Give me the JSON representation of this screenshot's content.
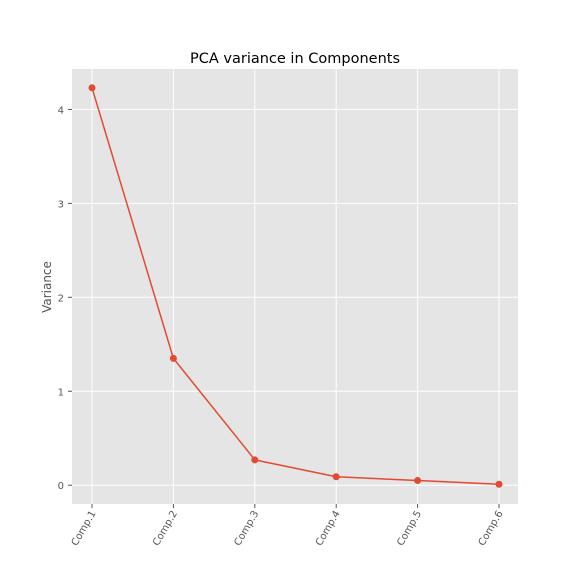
{
  "chart_data": {
    "type": "line",
    "title": "PCA variance in Components",
    "xlabel": "",
    "ylabel": "Variance",
    "categories": [
      "Comp.1",
      "Comp.2",
      "Comp.3",
      "Comp.4",
      "Comp.5",
      "Comp.6"
    ],
    "series": [
      {
        "values": [
          4.23,
          1.35,
          0.27,
          0.09,
          0.05,
          0.01
        ],
        "color": "#e24a33",
        "marker": "circle"
      }
    ],
    "yticks": [
      0,
      1,
      2,
      3,
      4
    ],
    "ylim": [
      -0.2,
      4.43
    ],
    "grid": true,
    "style": {
      "plot_background": "#e5e5e5",
      "grid_color": "#ffffff",
      "tick_label_color": "#555555",
      "title_color": "#000000"
    }
  }
}
